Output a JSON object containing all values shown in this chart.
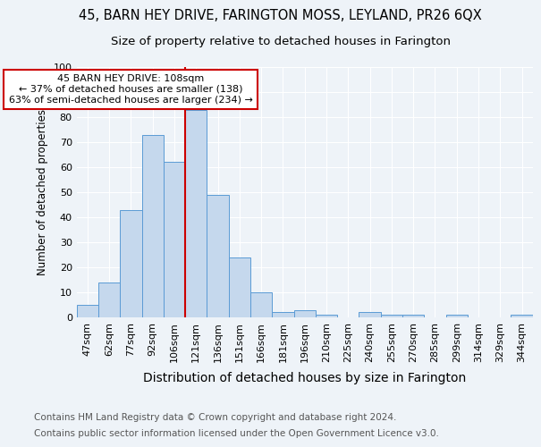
{
  "title": "45, BARN HEY DRIVE, FARINGTON MOSS, LEYLAND, PR26 6QX",
  "subtitle": "Size of property relative to detached houses in Farington",
  "xlabel": "Distribution of detached houses by size in Farington",
  "ylabel": "Number of detached properties",
  "bar_values": [
    5,
    14,
    43,
    73,
    62,
    83,
    49,
    24,
    10,
    2,
    3,
    1,
    0,
    2,
    1,
    1,
    0,
    1,
    0,
    0,
    1
  ],
  "x_labels": [
    "47sqm",
    "62sqm",
    "77sqm",
    "92sqm",
    "106sqm",
    "121sqm",
    "136sqm",
    "151sqm",
    "166sqm",
    "181sqm",
    "196sqm",
    "210sqm",
    "225sqm",
    "240sqm",
    "255sqm",
    "270sqm",
    "285sqm",
    "299sqm",
    "314sqm",
    "329sqm",
    "344sqm"
  ],
  "bar_color": "#c5d8ed",
  "bar_edge_color": "#5b9bd5",
  "ylim": [
    0,
    100
  ],
  "yticks": [
    0,
    10,
    20,
    30,
    40,
    50,
    60,
    70,
    80,
    90,
    100
  ],
  "vline_x_index": 4,
  "vline_color": "#cc0000",
  "annotation_text": "45 BARN HEY DRIVE: 108sqm\n← 37% of detached houses are smaller (138)\n63% of semi-detached houses are larger (234) →",
  "annotation_box_color": "#ffffff",
  "annotation_box_edge": "#cc0000",
  "footer1": "Contains HM Land Registry data © Crown copyright and database right 2024.",
  "footer2": "Contains public sector information licensed under the Open Government Licence v3.0.",
  "bg_color": "#eef3f8",
  "grid_color": "#ffffff",
  "title_fontsize": 10.5,
  "subtitle_fontsize": 9.5,
  "xlabel_fontsize": 10,
  "ylabel_fontsize": 8.5,
  "tick_fontsize": 8,
  "annotation_fontsize": 8,
  "footer_fontsize": 7.5
}
